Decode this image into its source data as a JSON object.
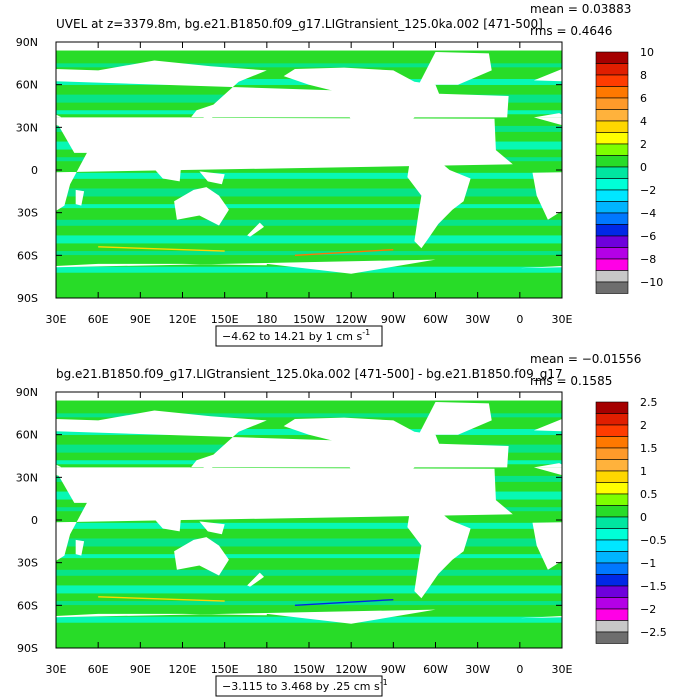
{
  "chart_data": [
    {
      "type": "heatmap",
      "title": "UVEL at z=3379.8m, bg.e21.B1850.f09_g17.LIGtransient_125.0ka.002 [471-500]",
      "stats": {
        "mean": "mean = 0.03883",
        "rms": "rms = 0.4646"
      },
      "x_ticks": [
        "30E",
        "60E",
        "90E",
        "120E",
        "150E",
        "180",
        "150W",
        "120W",
        "90W",
        "60W",
        "30W",
        "0",
        "30E"
      ],
      "y_ticks": [
        "90N",
        "60N",
        "30N",
        "0",
        "30S",
        "60S",
        "90S"
      ],
      "xlim": [
        30,
        390
      ],
      "ylim": [
        -90,
        90
      ],
      "range_label": "−4.62 to 14.21 by 1 cm s",
      "units_exponent": "-1",
      "colorbar": {
        "labels": [
          "10",
          "8",
          "6",
          "4",
          "2",
          "0",
          "−2",
          "−4",
          "−6",
          "−8",
          "−10"
        ],
        "colors": [
          "#a50000",
          "#e01e00",
          "#ff3c00",
          "#ff7800",
          "#ff9a2a",
          "#ffb23c",
          "#ffd700",
          "#ffff00",
          "#7dff00",
          "#28dc28",
          "#00e6a0",
          "#00ffd7",
          "#00e6ff",
          "#00b4ff",
          "#0078ff",
          "#0028e6",
          "#6e00dc",
          "#b400e6",
          "#ff00e6",
          "#c8c8c8",
          "#6e6e6e"
        ]
      },
      "grid": false
    },
    {
      "type": "heatmap",
      "title": "bg.e21.B1850.f09_g17.LIGtransient_125.0ka.002 [471-500] - bg.e21.B1850.f09_g17",
      "stats": {
        "mean": "mean = −0.01556",
        "rms": "rms = 0.1585"
      },
      "x_ticks": [
        "30E",
        "60E",
        "90E",
        "120E",
        "150E",
        "180",
        "150W",
        "120W",
        "90W",
        "60W",
        "30W",
        "0",
        "30E"
      ],
      "y_ticks": [
        "90N",
        "60N",
        "30N",
        "0",
        "30S",
        "60S",
        "90S"
      ],
      "xlim": [
        30,
        390
      ],
      "ylim": [
        -90,
        90
      ],
      "range_label": "−3.115 to 3.468 by .25 cm s",
      "units_exponent": "-1",
      "colorbar": {
        "labels": [
          "2.5",
          "2",
          "1.5",
          "1",
          "0.5",
          "0",
          "−0.5",
          "−1",
          "−1.5",
          "−2",
          "−2.5"
        ],
        "colors": [
          "#a50000",
          "#e01e00",
          "#ff3c00",
          "#ff7800",
          "#ff9a2a",
          "#ffb23c",
          "#ffd700",
          "#ffff00",
          "#7dff00",
          "#28dc28",
          "#00e6a0",
          "#00ffd7",
          "#00e6ff",
          "#00b4ff",
          "#0078ff",
          "#0028e6",
          "#6e00dc",
          "#b400e6",
          "#ff00e6",
          "#c8c8c8",
          "#6e6e6e"
        ]
      },
      "grid": false
    }
  ]
}
